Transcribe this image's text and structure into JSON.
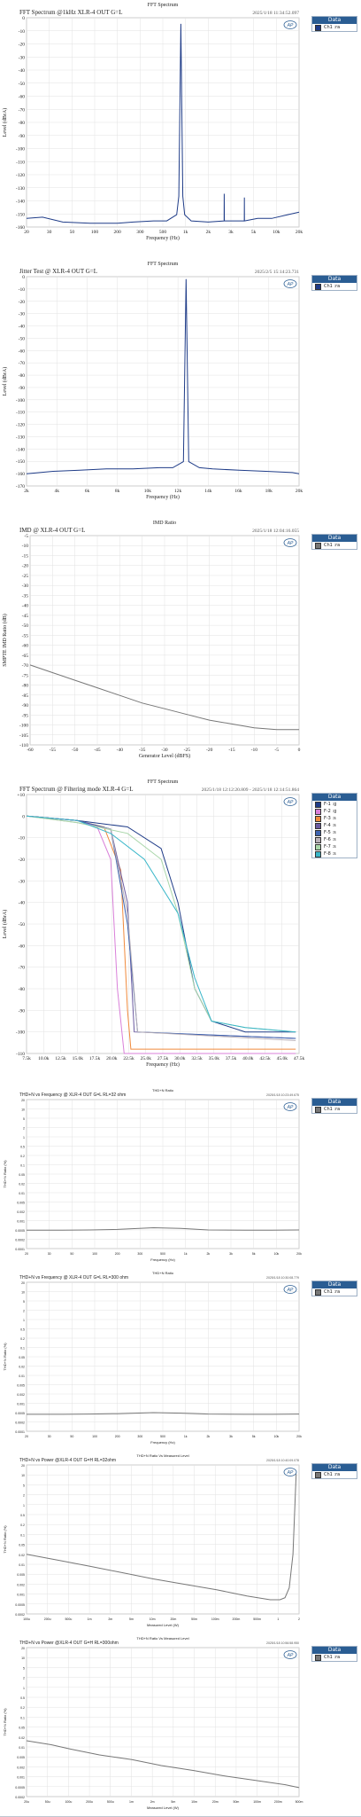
{
  "charts": [
    {
      "title": "FFT Spectrum @1kHz XLR-4 OUT G=L",
      "header": "FFT Spectrum",
      "timestamp": "2025/1/18 11:34:52.097",
      "ylabel": "Level (dBrA)",
      "xlabel": "Frequency (Hz)",
      "legend_title": "Data",
      "legend": [
        "Ch1 :ra"
      ],
      "ytick_labels": [
        "0",
        "-10",
        "-20",
        "-30",
        "-40",
        "-50",
        "-60",
        "-70",
        "-80",
        "-90",
        "-100",
        "-110",
        "-120",
        "-130",
        "-140",
        "-150",
        "-160"
      ],
      "xtick_labels": [
        "20",
        "30",
        "50",
        "100",
        "200",
        "300",
        "500",
        "1k",
        "2k",
        "3k",
        "5k",
        "10k",
        "20k"
      ]
    },
    {
      "title": "Jitter Test @ XLR-4 OUT G=L",
      "header": "FFT Spectrum",
      "timestamp": "2025/2/5 15:14:23.731",
      "ylabel": "Level (dBrA)",
      "xlabel": "Frequency (Hz)",
      "legend_title": "Data",
      "legend": [
        "Ch1 :ra"
      ],
      "ytick_labels": [
        "0",
        "-10",
        "-20",
        "-30",
        "-40",
        "-50",
        "-60",
        "-70",
        "-80",
        "-90",
        "-100",
        "-110",
        "-120",
        "-130",
        "-140",
        "-150",
        "-160",
        "-170"
      ],
      "xtick_labels": [
        "2k",
        "4k",
        "6k",
        "8k",
        "10k",
        "12k",
        "14k",
        "16k",
        "18k",
        "20k"
      ]
    },
    {
      "title": "IMD @ XLR-4 OUT G=L",
      "header": "IMD Ratio",
      "timestamp": "2025/1/18 12:04:16.055",
      "ylabel": "SMPTE IMD Ratio (dB)",
      "xlabel": "Generator Level (dBFS)",
      "legend_title": "Data",
      "legend": [
        "Ch1 :ra"
      ],
      "ytick_labels": [
        "-5",
        "-10",
        "-15",
        "-20",
        "-25",
        "-30",
        "-35",
        "-40",
        "-45",
        "-50",
        "-55",
        "-60",
        "-65",
        "-70",
        "-75",
        "-80",
        "-85",
        "-90",
        "-95",
        "-100",
        "-105",
        "-110"
      ],
      "xtick_labels": [
        "-60",
        "-55",
        "-50",
        "-45",
        "-40",
        "-35",
        "-30",
        "-25",
        "-20",
        "-15",
        "-10",
        "-5",
        "0"
      ]
    },
    {
      "title": "FFT Spectrum @ Filtering mode XLR-4 G=L",
      "header": "FFT Spectrum",
      "timestamp": "2025/1/18 12:12:20.809 - 2025/1/18 12:14:51.864",
      "ylabel": "Level (dBrA)",
      "xlabel": "Frequency (Hz)",
      "legend_title": "Data",
      "legend": [
        "F-1 :g",
        "F-2 :g",
        "F-3 :s",
        "F-4 :s",
        "F-5 :s",
        "F-6 :s",
        "F-7 :s",
        "F-8 :s"
      ],
      "ytick_labels": [
        "+10",
        "0",
        "-10",
        "-20",
        "-30",
        "-40",
        "-50",
        "-60",
        "-70",
        "-80",
        "-90",
        "-100",
        "-110"
      ],
      "xtick_labels": [
        "7.5k",
        "10.0k",
        "12.5k",
        "15.0k",
        "17.5k",
        "20.0k",
        "22.5k",
        "25.0k",
        "27.5k",
        "30.0k",
        "32.5k",
        "35.0k",
        "37.5k",
        "40.0k",
        "42.5k",
        "45.0k",
        "47.5k"
      ]
    },
    {
      "title": "THD+N vs Frequency @ XLR-4 OUT G=L RL=32 ohm",
      "header": "THD+N Ratio",
      "timestamp": "2025/1/18 10:23:49.675",
      "ylabel": "THD+N Ratio (%)",
      "xlabel": "Frequency (Hz)",
      "legend_title": "Data",
      "legend": [
        "Ch1 :ra"
      ],
      "ytick_labels": [
        "20",
        "10",
        "5",
        "2",
        "1",
        "0.5",
        "0.2",
        "0.1",
        "0.05",
        "0.02",
        "0.01",
        "0.005",
        "0.002",
        "0.001",
        "0.0005",
        "0.0002",
        "0.0001"
      ],
      "xtick_labels": [
        "20",
        "30",
        "50",
        "100",
        "200",
        "300",
        "500",
        "1k",
        "2k",
        "3k",
        "5k",
        "10k",
        "20k"
      ]
    },
    {
      "title": "THD+N vs Frequency @ XLR-4 OUT G=L RL=300 ohm",
      "header": "THD+N Ratio",
      "timestamp": "2025/1/18 10:30:08.779",
      "ylabel": "THD+N Ratio (%)",
      "xlabel": "Frequency (Hz)",
      "legend_title": "Data",
      "legend": [
        "Ch1 :ra"
      ],
      "ytick_labels": [
        "20",
        "10",
        "5",
        "2",
        "1",
        "0.5",
        "0.2",
        "0.1",
        "0.05",
        "0.02",
        "0.01",
        "0.005",
        "0.002",
        "0.001",
        "0.0005",
        "0.0002",
        "0.0001"
      ],
      "xtick_labels": [
        "20",
        "30",
        "50",
        "100",
        "200",
        "300",
        "500",
        "1k",
        "2k",
        "3k",
        "5k",
        "10k",
        "20k"
      ]
    },
    {
      "title": "THD+N vs Power @XLR-4 OUT G=H RL=32ohm",
      "header": "THD+N Ratio Vs Measured Level",
      "timestamp": "2025/1/18 10:40:09.078",
      "ylabel": "THD+N Ratio (%)",
      "xlabel": "Measured Level (W)",
      "legend_title": "Data",
      "legend": [
        "Ch1 :ra"
      ],
      "ytick_labels": [
        "20",
        "10",
        "5",
        "2",
        "1",
        "0.5",
        "0.2",
        "0.1",
        "0.05",
        "0.02",
        "0.01",
        "0.005",
        "0.002",
        "0.001",
        "0.0005",
        "0.0002"
      ],
      "xtick_labels": [
        "100u",
        "200u",
        "500u",
        "1m",
        "2m",
        "5m",
        "10m",
        "20m",
        "50m",
        "100m",
        "200m",
        "500m",
        "1",
        "2"
      ]
    },
    {
      "title": "THD+N vs Power @XLR-4 OUT G=H RL=300ohm",
      "header": "THD+N Ratio Vs Measured Level",
      "timestamp": "2025/1/18 10:56:58.950",
      "ylabel": "THD+N Ratio (%)",
      "xlabel": "Measured Level (W)",
      "legend_title": "Data",
      "legend": [
        "Ch1 :ra"
      ],
      "ytick_labels": [
        "20",
        "10",
        "5",
        "2",
        "1",
        "0.5",
        "0.2",
        "0.1",
        "0.05",
        "0.02",
        "0.01",
        "0.005",
        "0.002",
        "0.001",
        "0.0005",
        "0.0002"
      ],
      "xtick_labels": [
        "20u",
        "50u",
        "100u",
        "200u",
        "500u",
        "1m",
        "2m",
        "5m",
        "10m",
        "20m",
        "50m",
        "100m",
        "200m",
        "500m"
      ]
    }
  ],
  "chart_data": [
    {
      "type": "line",
      "title": "FFT Spectrum @1kHz XLR-4 OUT G=L",
      "xlabel": "Frequency (Hz)",
      "ylabel": "Level (dBrA)",
      "xscale": "log",
      "xlim": [
        20,
        20000
      ],
      "ylim": [
        -165,
        5
      ],
      "legend_position": "right",
      "series": [
        {
          "name": "Ch1 :ra",
          "color": "#1f3c88",
          "x": [
            20,
            30,
            50,
            100,
            200,
            300,
            500,
            700,
            900,
            950,
            1000,
            1050,
            1100,
            1300,
            2000,
            2990,
            3000,
            3010,
            4000,
            4990,
            5000,
            5010,
            7000,
            10000,
            15000,
            20000
          ],
          "y": [
            -158,
            -157,
            -161,
            -162,
            -162,
            -161,
            -160,
            -160,
            -155,
            -140,
            0,
            -140,
            -155,
            -160,
            -161,
            -160,
            -138,
            -160,
            -160,
            -160,
            -141,
            -160,
            -158,
            -158,
            -155,
            -153
          ]
        }
      ]
    },
    {
      "type": "line",
      "title": "Jitter Test @ XLR-4 OUT G=L",
      "xlabel": "Frequency (Hz)",
      "ylabel": "Level (dBrA)",
      "xlim": [
        0,
        20500
      ],
      "ylim": [
        -170,
        2
      ],
      "legend_position": "right",
      "series": [
        {
          "name": "Ch1 :ra",
          "color": "#1f3c88",
          "x": [
            0,
            1000,
            2000,
            4000,
            6000,
            8000,
            10000,
            11000,
            11800,
            12000,
            12200,
            13000,
            14000,
            16000,
            18000,
            20000,
            20500
          ],
          "y": [
            -160,
            -159,
            -158,
            -157,
            -156,
            -156,
            -155,
            -155,
            -150,
            0,
            -150,
            -155,
            -156,
            -157,
            -158,
            -159,
            -160
          ]
        }
      ]
    },
    {
      "type": "line",
      "title": "IMD @ XLR-4 OUT G=L",
      "xlabel": "Generator Level (dBFS)",
      "ylabel": "SMPTE IMD Ratio (dB)",
      "xlim": [
        -60,
        0
      ],
      "ylim": [
        -110,
        0
      ],
      "legend_position": "right",
      "series": [
        {
          "name": "Ch1 :ra",
          "color": "#777777",
          "x": [
            -60,
            -55,
            -50,
            -45,
            -40,
            -35,
            -30,
            -25,
            -20,
            -15,
            -10,
            -5,
            0
          ],
          "y": [
            -68,
            -72,
            -76,
            -80,
            -84,
            -88,
            -91,
            -94,
            -97,
            -99,
            -101,
            -102,
            -102
          ]
        }
      ]
    },
    {
      "type": "line",
      "title": "FFT Spectrum @ Filtering mode XLR-4 G=L",
      "xlabel": "Frequency (Hz)",
      "ylabel": "Level (dBrA)",
      "xlim": [
        7500,
        48000
      ],
      "ylim": [
        -110,
        10
      ],
      "legend_position": "right",
      "series": [
        {
          "name": "F-1 :g",
          "color": "#1f3c88",
          "x": [
            7500,
            15000,
            22500,
            27500,
            30000,
            32500,
            35000,
            40000,
            47500
          ],
          "y": [
            0,
            -2,
            -5,
            -15,
            -40,
            -80,
            -95,
            -100,
            -100
          ]
        },
        {
          "name": "F-2 :g",
          "color": "#d97fd9",
          "x": [
            7500,
            15000,
            18000,
            20000,
            21000,
            22000,
            47500
          ],
          "y": [
            0,
            -2,
            -5,
            -20,
            -80,
            -110,
            -110
          ]
        },
        {
          "name": "F-3 :s",
          "color": "#f08a3c",
          "x": [
            7500,
            15000,
            19000,
            21500,
            22500,
            23000,
            47500
          ],
          "y": [
            0,
            -2,
            -5,
            -25,
            -90,
            -108,
            -108
          ]
        },
        {
          "name": "F-4 :s",
          "color": "#6a5aa0",
          "x": [
            7500,
            15000,
            20000,
            22500,
            23500,
            47500
          ],
          "y": [
            0,
            -2,
            -6,
            -40,
            -100,
            -103
          ]
        },
        {
          "name": "F-5 :s",
          "color": "#3d63b0",
          "x": [
            7500,
            15000,
            20000,
            22500,
            24000,
            47500
          ],
          "y": [
            0,
            -2,
            -6,
            -50,
            -100,
            -103
          ]
        },
        {
          "name": "F-6 :s",
          "color": "#b8b0b8",
          "x": [
            7500,
            15000,
            20000,
            22500,
            24000,
            47500
          ],
          "y": [
            0,
            -3,
            -6,
            -45,
            -100,
            -104
          ]
        },
        {
          "name": "F-7 :s",
          "color": "#a9d6a9",
          "x": [
            7500,
            15000,
            22500,
            27500,
            30000,
            32500,
            35000,
            40000,
            47500
          ],
          "y": [
            0,
            -3,
            -8,
            -20,
            -45,
            -80,
            -95,
            -98,
            -100
          ]
        },
        {
          "name": "F-8 :s",
          "color": "#38b6c9",
          "x": [
            7500,
            15000,
            20000,
            25000,
            30000,
            32500,
            35000,
            40000,
            47500
          ],
          "y": [
            0,
            -2,
            -8,
            -20,
            -45,
            -75,
            -95,
            -98,
            -100
          ]
        }
      ]
    },
    {
      "type": "line",
      "title": "THD+N vs Frequency @ XLR-4 OUT G=L RL=32 ohm",
      "xlabel": "Frequency (Hz)",
      "ylabel": "THD+N Ratio (%)",
      "xscale": "log",
      "yscale": "log",
      "xlim": [
        20,
        20000
      ],
      "ylim": [
        0.0001,
        20
      ],
      "legend_position": "right",
      "series": [
        {
          "name": "Ch1 :ra",
          "color": "#777777",
          "x": [
            20,
            50,
            100,
            200,
            500,
            1000,
            2000,
            5000,
            10000,
            20000
          ],
          "y": [
            0.00045,
            0.00045,
            0.00046,
            0.00048,
            0.00055,
            0.00052,
            0.00046,
            0.00045,
            0.00045,
            0.00046
          ]
        }
      ]
    },
    {
      "type": "line",
      "title": "THD+N vs Frequency @ XLR-4 OUT G=L RL=300 ohm",
      "xlabel": "Frequency (Hz)",
      "ylabel": "THD+N Ratio (%)",
      "xscale": "log",
      "yscale": "log",
      "xlim": [
        20,
        20000
      ],
      "ylim": [
        0.0001,
        20
      ],
      "legend_position": "right",
      "series": [
        {
          "name": "Ch1 :ra",
          "color": "#777777",
          "x": [
            20,
            50,
            100,
            200,
            500,
            1000,
            2000,
            5000,
            10000,
            20000
          ],
          "y": [
            0.0004,
            0.0004,
            0.00041,
            0.00042,
            0.00046,
            0.00044,
            0.00041,
            0.0004,
            0.0004,
            0.00041
          ]
        }
      ]
    },
    {
      "type": "line",
      "title": "THD+N vs Power @XLR-4 OUT G=H RL=32ohm",
      "xlabel": "Measured Level (W)",
      "ylabel": "THD+N Ratio (%)",
      "xscale": "log",
      "yscale": "log",
      "xlim": [
        0.0001,
        2
      ],
      "ylim": [
        0.0002,
        20
      ],
      "legend_position": "right",
      "series": [
        {
          "name": "Ch1 :ra",
          "color": "#777777",
          "x": [
            0.0001,
            0.0003,
            0.001,
            0.003,
            0.01,
            0.03,
            0.1,
            0.3,
            0.7,
            1.0,
            1.2,
            1.4,
            1.6,
            1.8
          ],
          "y": [
            0.02,
            0.013,
            0.008,
            0.005,
            0.003,
            0.002,
            0.0013,
            0.0008,
            0.0006,
            0.0006,
            0.0007,
            0.0015,
            0.02,
            10
          ]
        }
      ]
    },
    {
      "type": "line",
      "title": "THD+N vs Power @XLR-4 OUT G=H RL=300ohm",
      "xlabel": "Measured Level (W)",
      "ylabel": "THD+N Ratio (%)",
      "xscale": "log",
      "yscale": "log",
      "xlim": [
        2e-05,
        0.5
      ],
      "ylim": [
        0.0002,
        20
      ],
      "legend_position": "right",
      "series": [
        {
          "name": "Ch1 :ra",
          "color": "#777777",
          "x": [
            2e-05,
            5e-05,
            0.0001,
            0.0003,
            0.001,
            0.003,
            0.01,
            0.03,
            0.1,
            0.3,
            0.5
          ],
          "y": [
            0.015,
            0.011,
            0.008,
            0.005,
            0.0035,
            0.0022,
            0.0015,
            0.001,
            0.0007,
            0.0005,
            0.0004
          ]
        }
      ]
    }
  ]
}
